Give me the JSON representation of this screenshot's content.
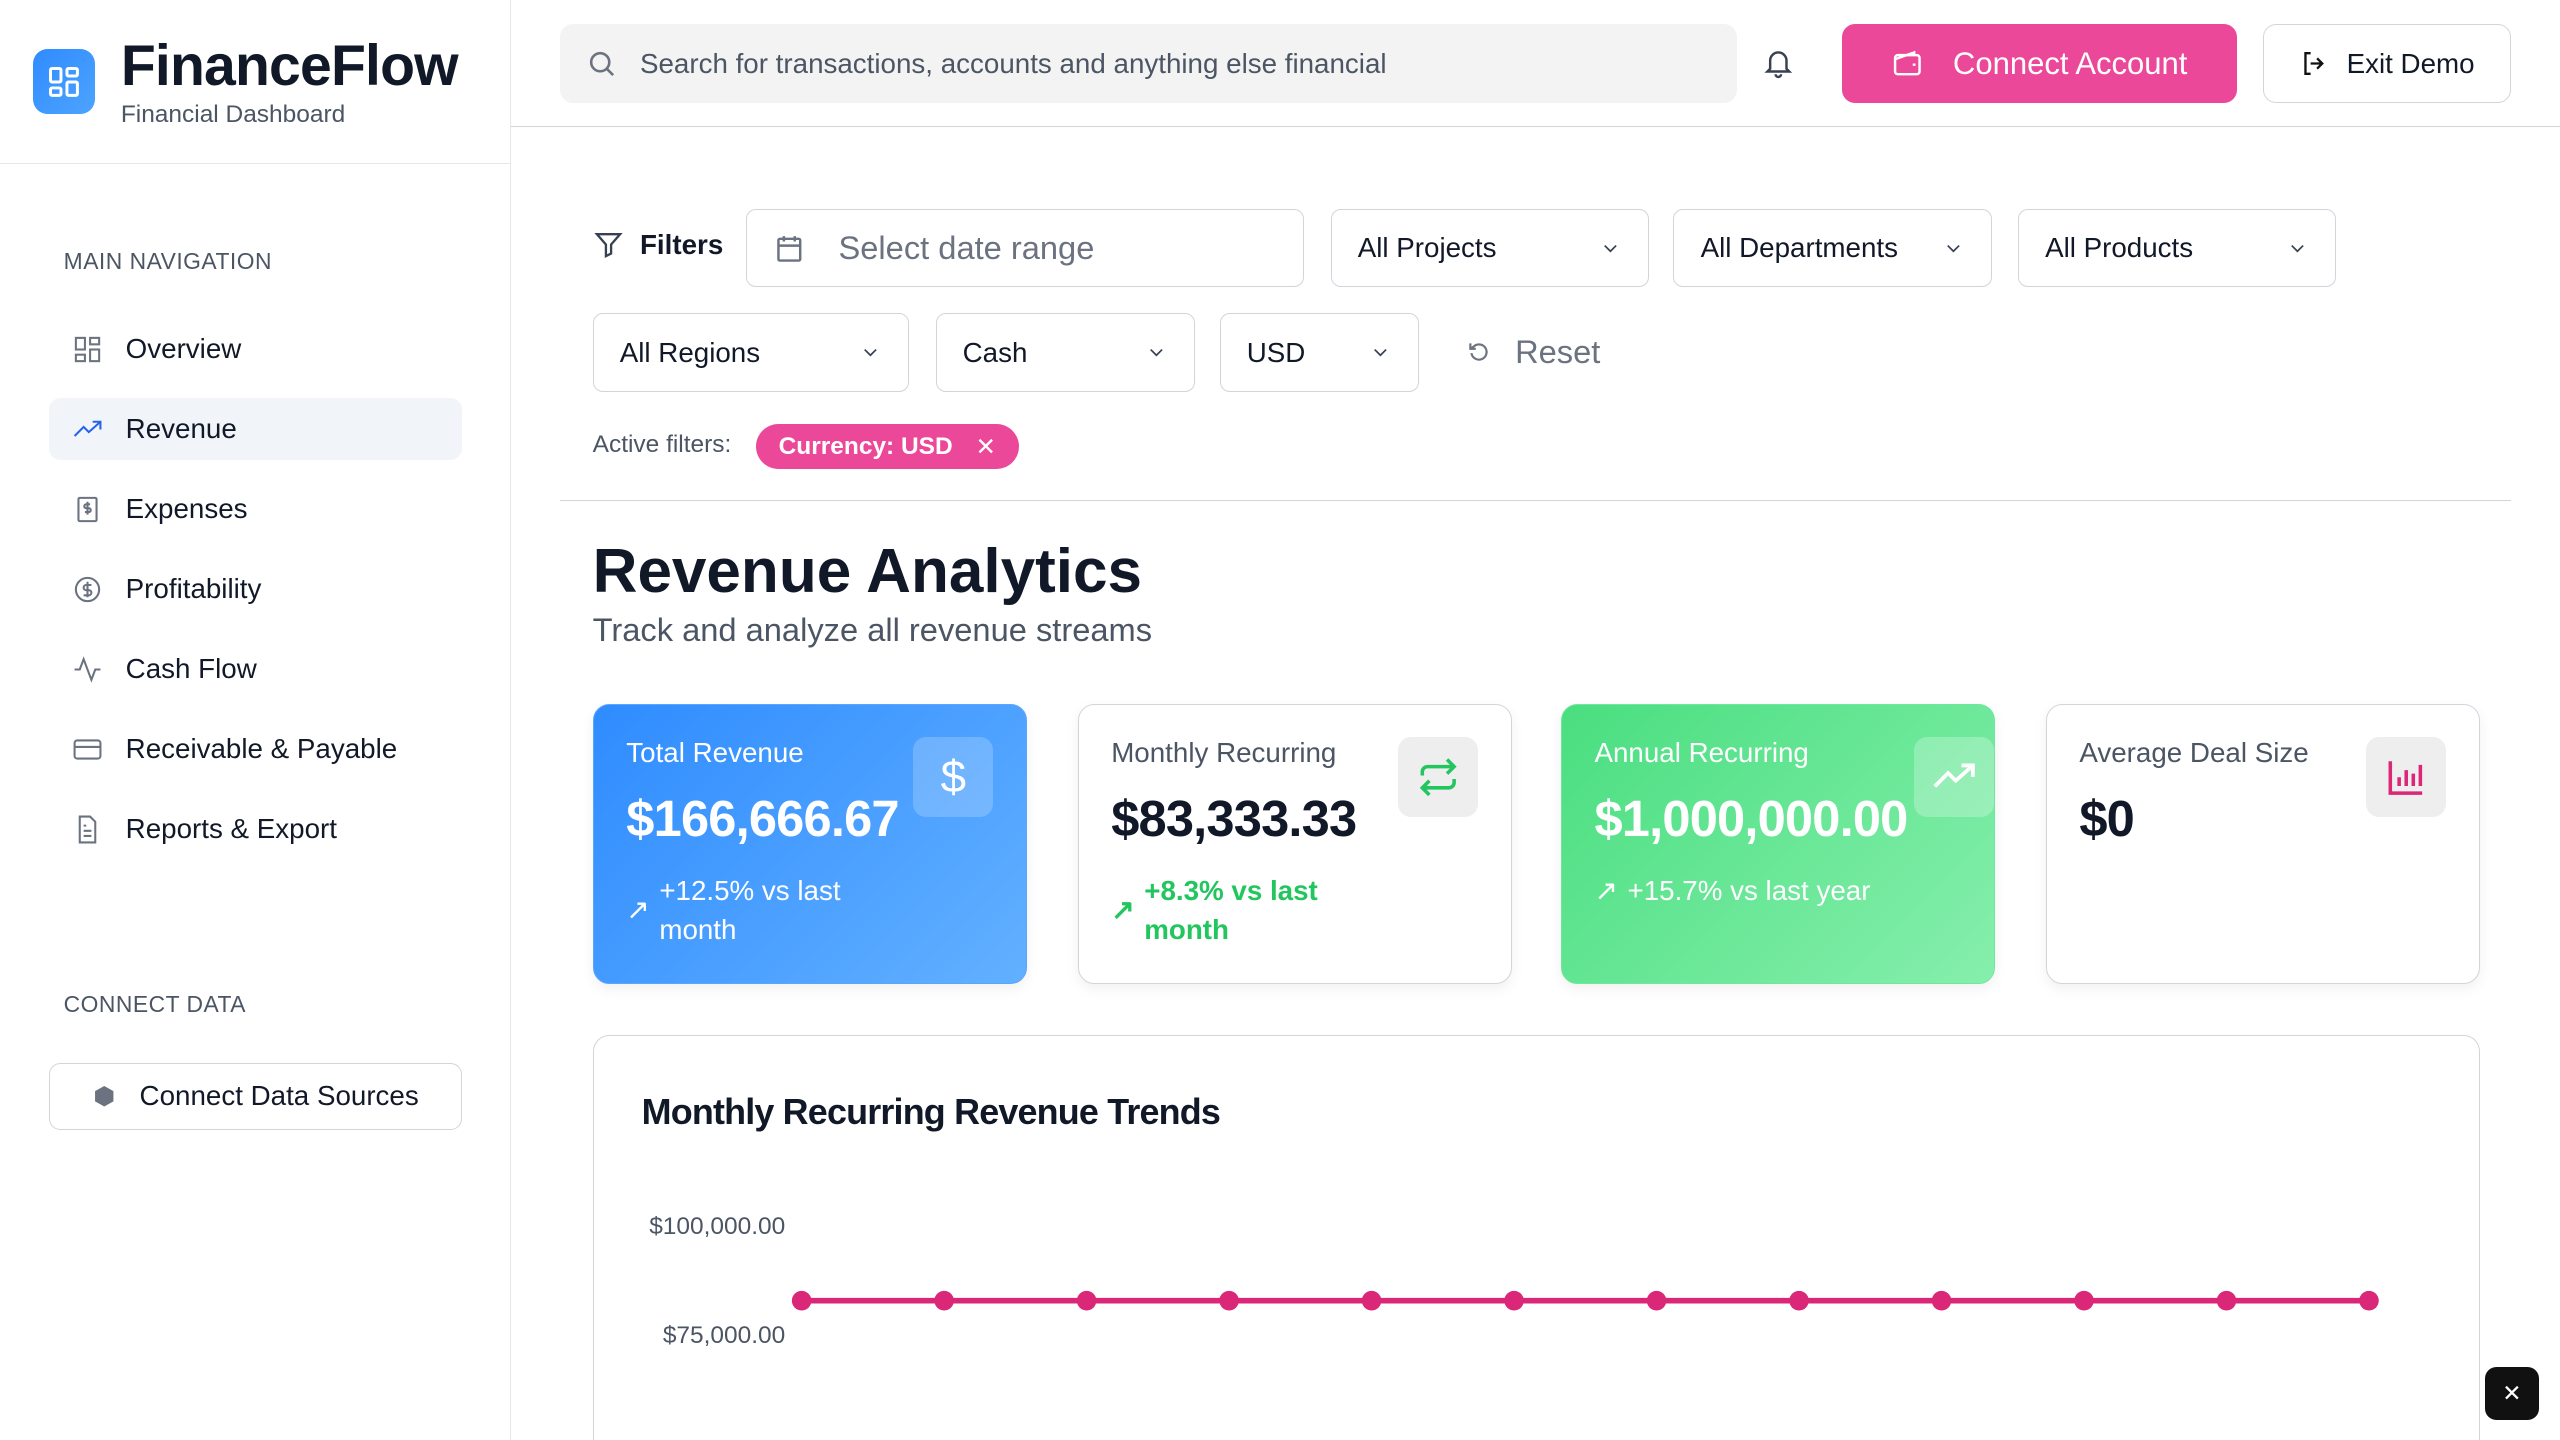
{
  "app": {
    "name": "FinanceFlow",
    "subtitle": "Financial Dashboard"
  },
  "header": {
    "search_placeholder": "Search for transactions, accounts and anything else financial",
    "connect_label": "Connect Account",
    "exit_label": "Exit Demo"
  },
  "sidebar": {
    "main_heading": "MAIN NAVIGATION",
    "items": [
      {
        "label": "Overview",
        "icon": "grid-icon"
      },
      {
        "label": "Revenue",
        "icon": "trending-up-icon",
        "active": true
      },
      {
        "label": "Expenses",
        "icon": "receipt-icon"
      },
      {
        "label": "Profitability",
        "icon": "dollar-circle-icon"
      },
      {
        "label": "Cash Flow",
        "icon": "activity-icon"
      },
      {
        "label": "Receivable & Payable",
        "icon": "credit-card-icon"
      },
      {
        "label": "Reports & Export",
        "icon": "file-icon"
      }
    ],
    "connect_heading": "CONNECT DATA",
    "connect_button": "Connect Data Sources"
  },
  "filters": {
    "label": "Filters",
    "date_placeholder": "Select date range",
    "projects": "All Projects",
    "departments": "All Departments",
    "products": "All Products",
    "regions": "All Regions",
    "basis": "Cash",
    "currency": "USD",
    "reset": "Reset",
    "active_label": "Active filters:",
    "active_chip": "Currency: USD"
  },
  "page": {
    "title": "Revenue Analytics",
    "subtitle": "Track and analyze all revenue streams"
  },
  "cards": [
    {
      "label": "Total Revenue",
      "value": "$166,666.67",
      "change": "+12.5% vs last month",
      "icon": "dollar-icon"
    },
    {
      "label": "Monthly Recurring",
      "value": "$83,333.33",
      "change": "+8.3% vs last month",
      "icon": "repeat-icon"
    },
    {
      "label": "Annual Recurring",
      "value": "$1,000,000.00",
      "change": "+15.7% vs last year",
      "icon": "trending-up-icon"
    },
    {
      "label": "Average Deal Size",
      "value": "$0",
      "icon": "bar-chart-icon"
    }
  ],
  "chart_data": {
    "type": "line",
    "title": "Monthly Recurring Revenue Trends",
    "y_tick_labels": [
      "$100,000.00",
      "$75,000.00"
    ],
    "y_ticks": [
      100000,
      75000
    ],
    "series": [
      {
        "values": [
          83333.33,
          83333.33,
          83333.33,
          83333.33,
          83333.33,
          83333.33,
          83333.33,
          83333.33,
          83333.33,
          83333.33,
          83333.33,
          83333.33
        ],
        "color": "#db2777"
      }
    ]
  },
  "colors": {
    "accent": "#ec4899",
    "primary": "#2f8cff",
    "success": "#22c55e"
  }
}
